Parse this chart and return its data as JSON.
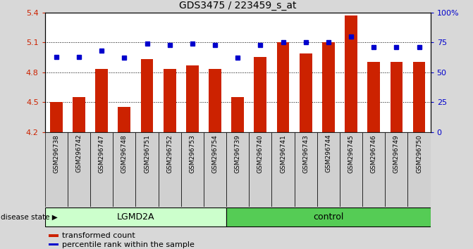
{
  "title": "GDS3475 / 223459_s_at",
  "samples": [
    "GSM296738",
    "GSM296742",
    "GSM296747",
    "GSM296748",
    "GSM296751",
    "GSM296752",
    "GSM296753",
    "GSM296754",
    "GSM296739",
    "GSM296740",
    "GSM296741",
    "GSM296743",
    "GSM296744",
    "GSM296745",
    "GSM296746",
    "GSM296749",
    "GSM296750"
  ],
  "bar_values": [
    4.5,
    4.55,
    4.83,
    4.45,
    4.93,
    4.83,
    4.87,
    4.83,
    4.55,
    4.95,
    5.1,
    4.99,
    5.1,
    5.37,
    4.9,
    4.9,
    4.9
  ],
  "percentile_values": [
    63,
    63,
    68,
    62,
    74,
    73,
    74,
    73,
    62,
    73,
    75,
    75,
    75,
    80,
    71,
    71,
    71
  ],
  "ylim_left": [
    4.2,
    5.4
  ],
  "ylim_right": [
    0,
    100
  ],
  "yticks_left": [
    4.2,
    4.5,
    4.8,
    5.1,
    5.4
  ],
  "ytick_labels_left": [
    "4.2",
    "4.5",
    "4.8",
    "5.1",
    "5.4"
  ],
  "yticks_right": [
    0,
    25,
    50,
    75,
    100
  ],
  "ytick_labels_right": [
    "0",
    "25",
    "50",
    "75",
    "100%"
  ],
  "bar_color": "#cc2200",
  "dot_color": "#0000cc",
  "background_color": "#d8d8d8",
  "plot_bg": "#ffffff",
  "lgmd2a_indices": [
    0,
    1,
    2,
    3,
    4,
    5,
    6,
    7
  ],
  "control_indices": [
    8,
    9,
    10,
    11,
    12,
    13,
    14,
    15,
    16
  ],
  "lgmd2a_color": "#ccffcc",
  "control_color": "#55cc55",
  "lgmd2a_label": "LGMD2A",
  "control_label": "control",
  "disease_label": "disease state",
  "legend_bar_label": "transformed count",
  "legend_dot_label": "percentile rank within the sample",
  "bar_width": 0.55
}
